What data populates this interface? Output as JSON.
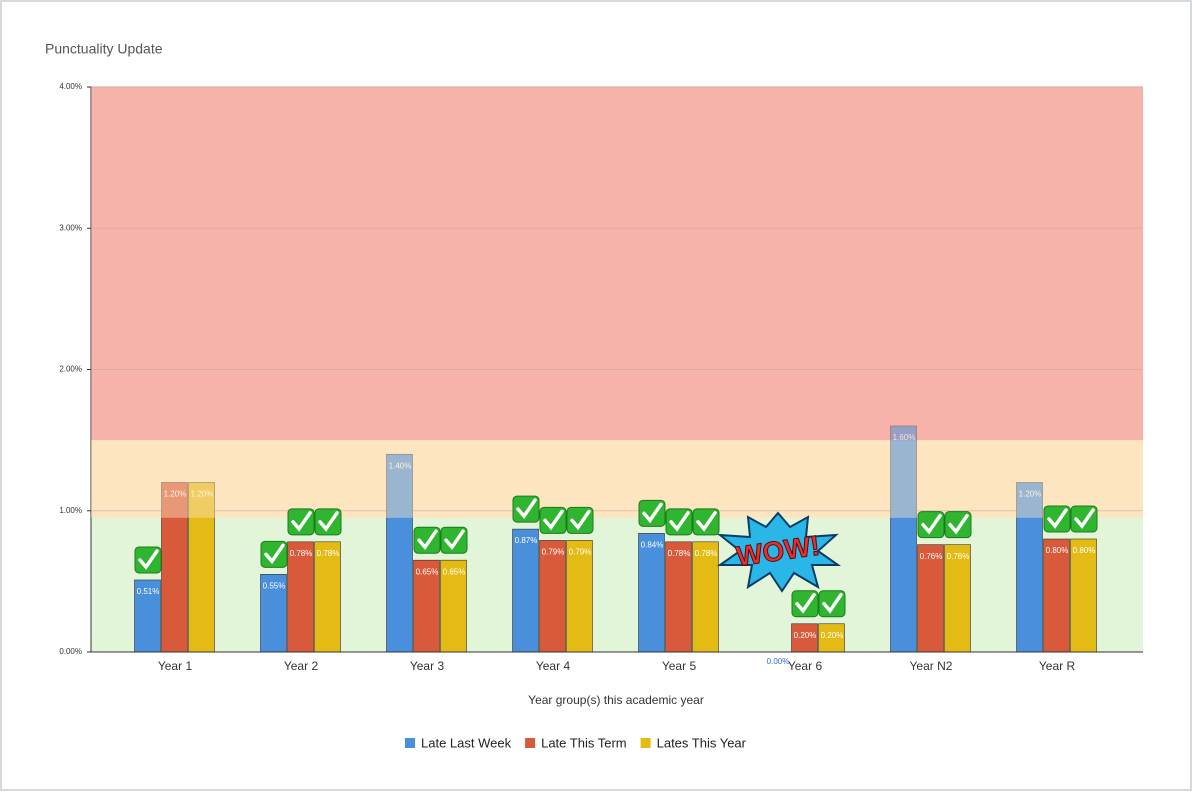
{
  "chart_data": {
    "type": "bar",
    "title": "Punctuality Update",
    "x_label": "Year group(s) this academic year",
    "categories": [
      "Year 1",
      "Year 2",
      "Year 3",
      "Year 4",
      "Year 5",
      "Year 6",
      "Year N2",
      "Year R"
    ],
    "series": [
      {
        "name": "Late Last Week",
        "color": "#4a8fdc",
        "values": [
          0.51,
          0.55,
          1.4,
          0.87,
          0.84,
          0,
          1.6,
          1.2
        ],
        "value_labels": [
          "0.51%",
          "0.55%",
          "1.40%",
          "0.87%",
          "0.84%",
          "0.00%",
          "1.60%",
          "1.20%"
        ]
      },
      {
        "name": "Late This Term",
        "color": "#d95a3a",
        "values": [
          1.2,
          0.78,
          0.65,
          0.79,
          0.78,
          0.2,
          0.76,
          0.8
        ],
        "value_labels": [
          "1.20%",
          "0.78%",
          "0.65%",
          "0.79%",
          "0.78%",
          "0.20%",
          "0.76%",
          "0.80%"
        ]
      },
      {
        "name": "Lates This Year",
        "color": "#e3bb14",
        "values": [
          1.2,
          0.78,
          0.65,
          0.79,
          0.78,
          0.2,
          0.76,
          0.8
        ],
        "value_labels": [
          "1.20%",
          "0.78%",
          "0.65%",
          "0.79%",
          "0.78%",
          "0.20%",
          "0.76%",
          "0.80%"
        ]
      }
    ],
    "ylim": [
      0,
      4
    ],
    "yticks": [
      {
        "value": 0,
        "label": "0.00%"
      },
      {
        "value": 1,
        "label": "1.00%"
      },
      {
        "value": 2,
        "label": "2.00%"
      },
      {
        "value": 3,
        "label": "3.00%"
      },
      {
        "value": 4,
        "label": "4.00%"
      }
    ],
    "grid": true,
    "bands": [
      {
        "from": 0,
        "to": 0.95,
        "color": "#e3f5d8"
      },
      {
        "from": 0.95,
        "to": 1.5,
        "color": "#fde5c0"
      },
      {
        "from": 1.5,
        "to": 4,
        "color": "#f7b3aa"
      }
    ],
    "legend": "bottom",
    "annotation": "WOW!"
  }
}
